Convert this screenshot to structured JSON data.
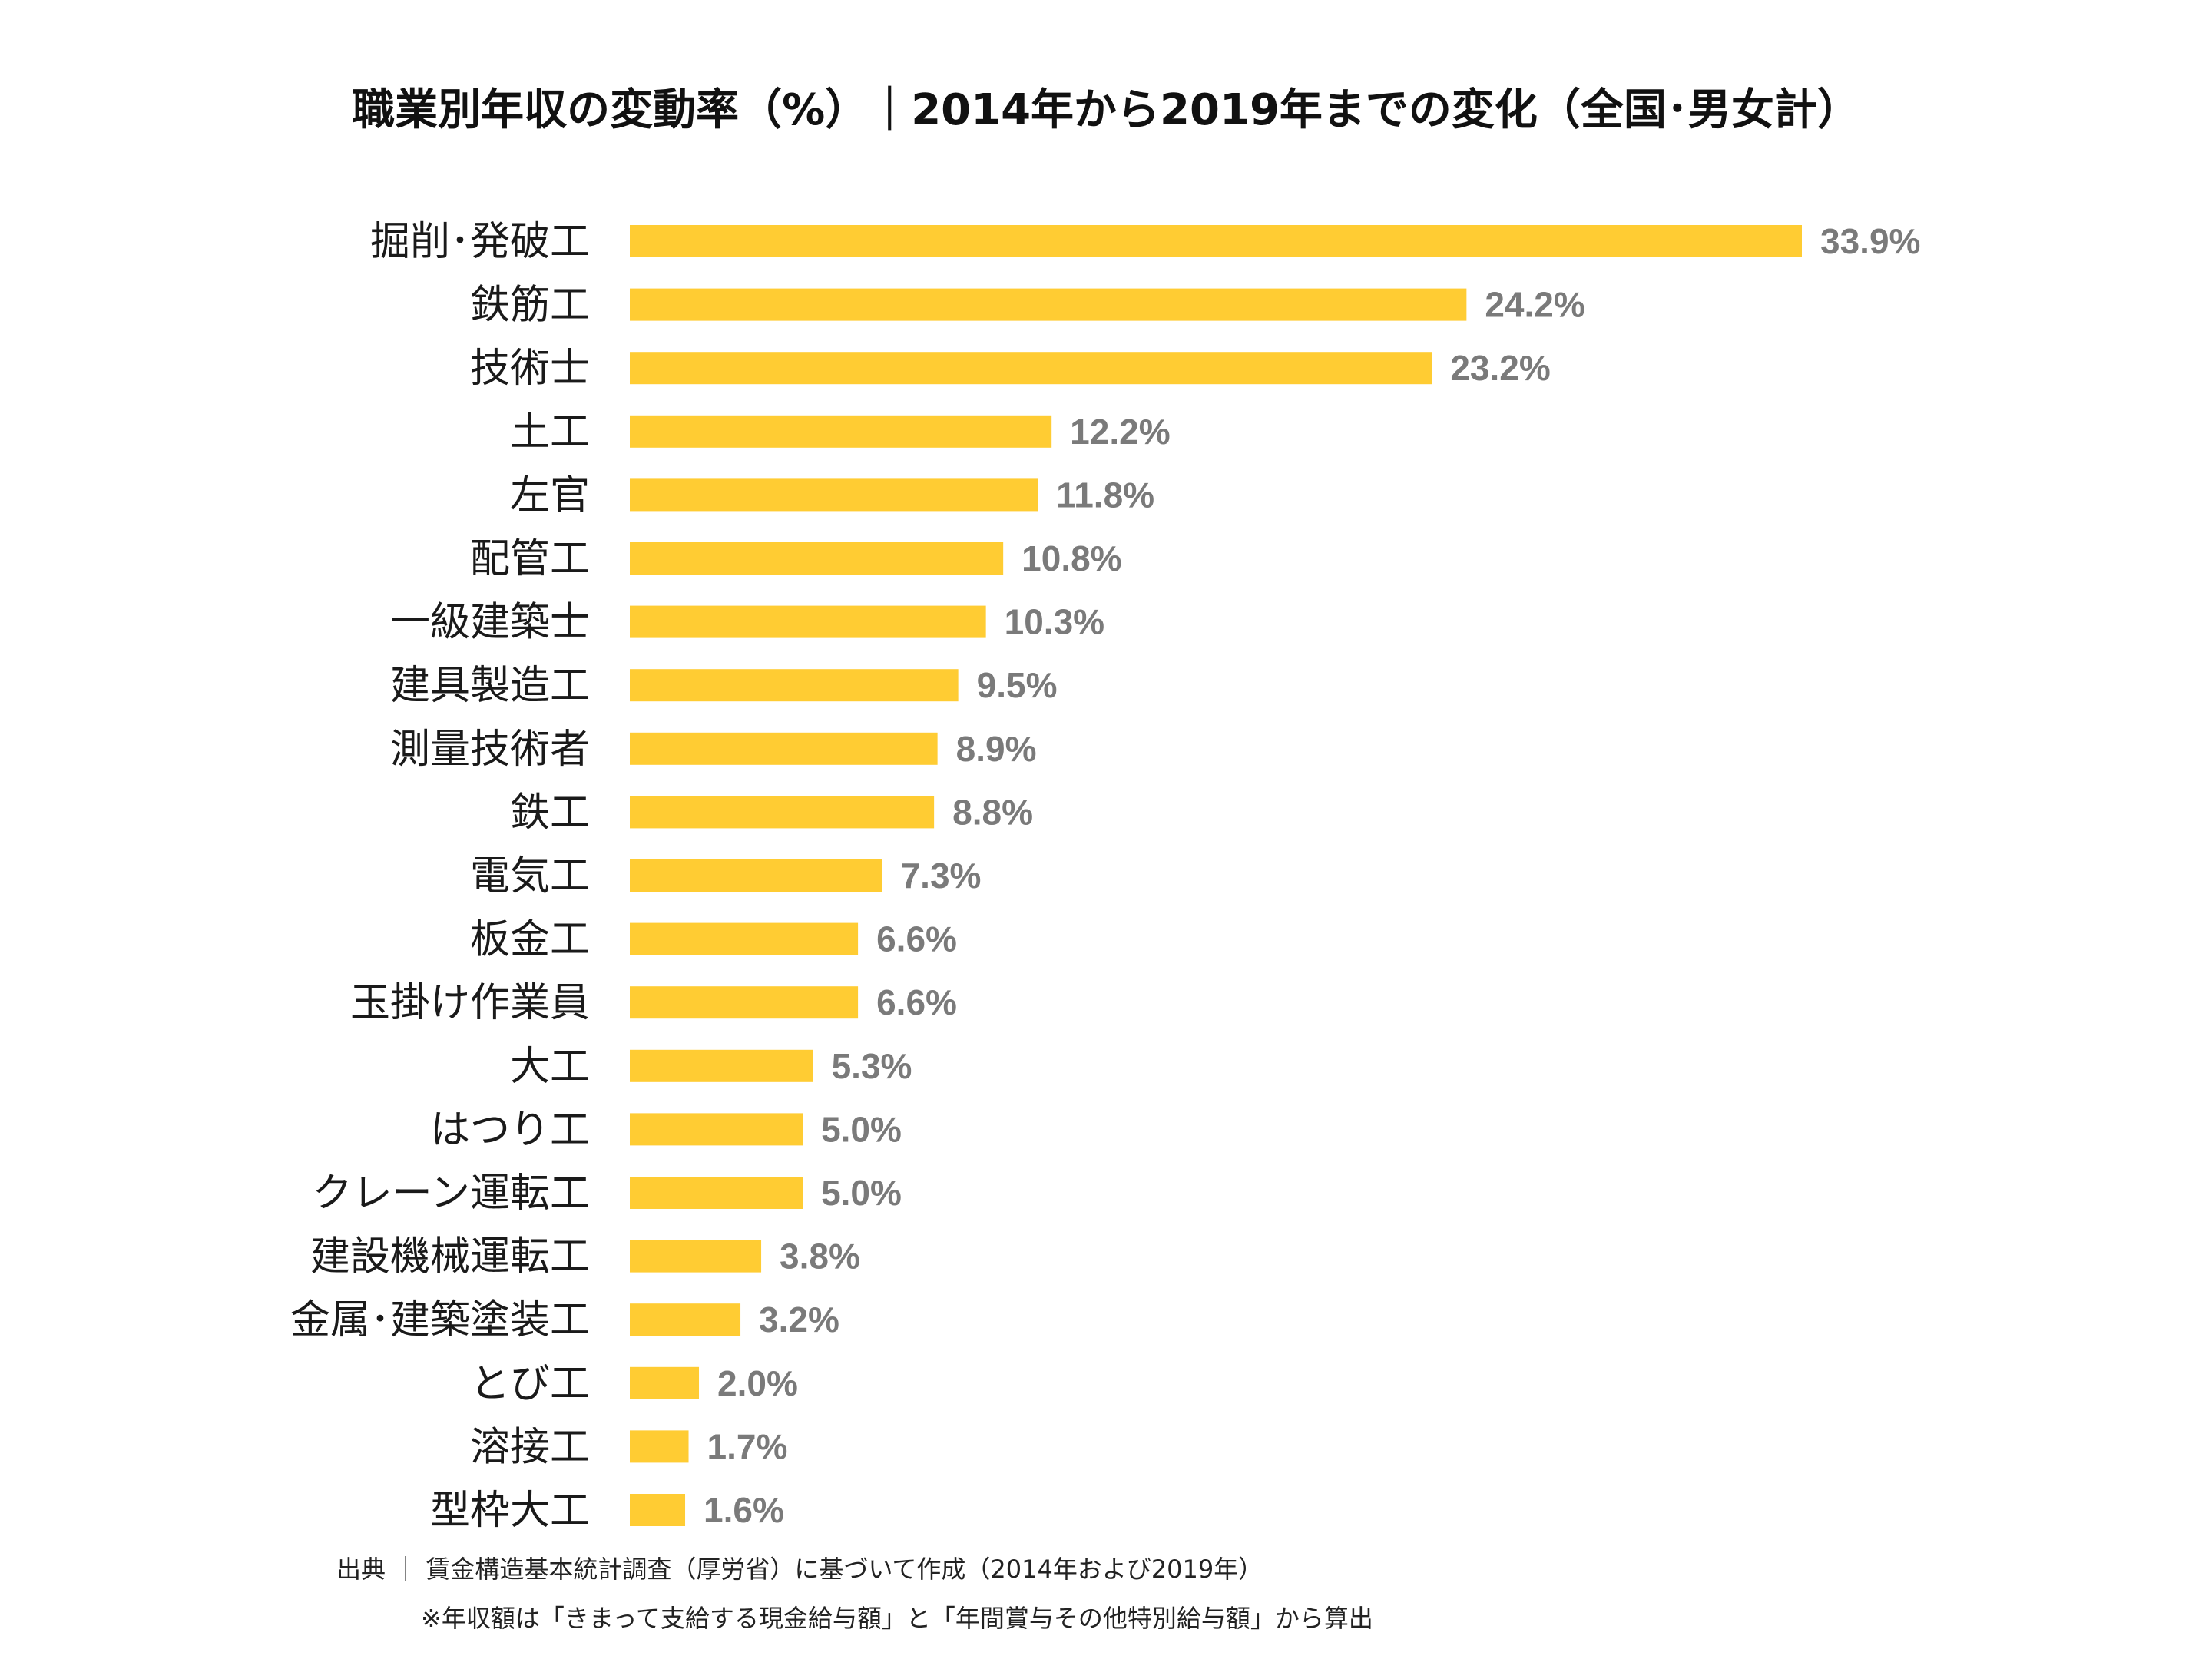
{
  "chart_data": {
    "type": "bar",
    "orientation": "horizontal",
    "title": "職業別年収の変動率（%）｜2014年から2019年までの変化（全国･男女計）",
    "categories": [
      "掘削･発破工",
      "鉄筋工",
      "技術士",
      "土工",
      "左官",
      "配管工",
      "一級建築士",
      "建具製造工",
      "測量技術者",
      "鉄工",
      "電気工",
      "板金工",
      "玉掛け作業員",
      "大工",
      "はつり工",
      "クレーン運転工",
      "建設機械運転工",
      "金属･建築塗装工",
      "とび工",
      "溶接工",
      "型枠大工"
    ],
    "values": [
      33.9,
      24.2,
      23.2,
      12.2,
      11.8,
      10.8,
      10.3,
      9.5,
      8.9,
      8.8,
      7.3,
      6.6,
      6.6,
      5.3,
      5.0,
      5.0,
      3.8,
      3.2,
      2.0,
      1.7,
      1.6
    ],
    "value_labels": [
      "33.9%",
      "24.2%",
      "23.2%",
      "12.2%",
      "11.8%",
      "10.8%",
      "10.3%",
      "9.5%",
      "8.9%",
      "8.8%",
      "7.3%",
      "6.6%",
      "6.6%",
      "5.3%",
      "5.0%",
      "5.0%",
      "3.8%",
      "3.2%",
      "2.0%",
      "1.7%",
      "1.6%"
    ],
    "bar_color": "#FFCC33",
    "xlim": [
      0,
      33.9
    ],
    "grid": false,
    "legend": "none"
  },
  "notes": {
    "source": "出典 ｜ 賃金構造基本統計調査（厚労省）に基づいて作成（2014年および2019年）",
    "calc": "※年収額は「きまって支給する現金給与額」と「年間賞与その他特別給与額」から算出"
  }
}
